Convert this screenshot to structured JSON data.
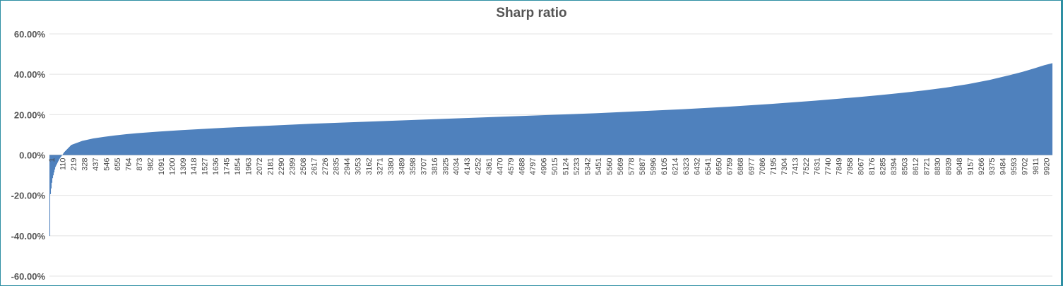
{
  "chart_data": {
    "type": "bar",
    "title": "Sharp ratio",
    "xlabel": "",
    "ylabel": "",
    "ylim": [
      -60,
      60
    ],
    "y_unit": "%",
    "y_ticks": [
      "60.00%",
      "40.00%",
      "20.00%",
      "0.00%",
      "-20.00%",
      "-40.00%",
      "-60.00%"
    ],
    "y_tick_values": [
      60,
      40,
      20,
      0,
      -20,
      -40,
      -60
    ],
    "x_tick_labels": [
      "1",
      "110",
      "219",
      "328",
      "437",
      "546",
      "655",
      "764",
      "873",
      "982",
      "1091",
      "1200",
      "1309",
      "1418",
      "1527",
      "1636",
      "1745",
      "1854",
      "1963",
      "2072",
      "2181",
      "2290",
      "2399",
      "2508",
      "2617",
      "2726",
      "2835",
      "2944",
      "3053",
      "3162",
      "3271",
      "3380",
      "3489",
      "3598",
      "3707",
      "3816",
      "3925",
      "4034",
      "4143",
      "4252",
      "4361",
      "4470",
      "4579",
      "4688",
      "4797",
      "4906",
      "5015",
      "5124",
      "5233",
      "5342",
      "5451",
      "5560",
      "5669",
      "5778",
      "5887",
      "5996",
      "6105",
      "6214",
      "6323",
      "6432",
      "6541",
      "6650",
      "6759",
      "6868",
      "6977",
      "7086",
      "7195",
      "7304",
      "7413",
      "7522",
      "7631",
      "7740",
      "7849",
      "7958",
      "8067",
      "8176",
      "8285",
      "8394",
      "8503",
      "8612",
      "8721",
      "8830",
      "8939",
      "9048",
      "9157",
      "9266",
      "9375",
      "9484",
      "9593",
      "9702",
      "9811",
      "9920"
    ],
    "x_range": [
      1,
      10000
    ],
    "bar_color": "#4f81bd",
    "grid": true,
    "legend": "none",
    "series": [
      {
        "x": [
          1,
          10,
          30,
          60,
          100,
          150,
          219,
          328,
          437,
          546,
          655,
          764,
          873,
          982,
          1091,
          1309,
          1527,
          1745,
          1963,
          2181,
          2399,
          2617,
          2835,
          3053,
          3271,
          3489,
          3707,
          3925,
          4143,
          4361,
          4579,
          4797,
          5015,
          5233,
          5451,
          5669,
          5887,
          6105,
          6323,
          6541,
          6759,
          6977,
          7195,
          7413,
          7631,
          7849,
          8067,
          8285,
          8503,
          8721,
          8939,
          9157,
          9375,
          9593,
          9702,
          9811,
          9920,
          10000
        ],
        "y": [
          -53,
          -20,
          -12,
          -6,
          -2,
          1.5,
          5,
          7,
          8.2,
          9,
          9.7,
          10.3,
          10.8,
          11.2,
          11.6,
          12.3,
          12.9,
          13.5,
          14,
          14.5,
          15,
          15.5,
          15.9,
          16.3,
          16.7,
          17.1,
          17.5,
          17.9,
          18.3,
          18.7,
          19.1,
          19.5,
          19.9,
          20.3,
          20.7,
          21.2,
          21.7,
          22.2,
          22.7,
          23.3,
          23.9,
          24.6,
          25.3,
          26.1,
          26.9,
          27.8,
          28.7,
          29.7,
          30.8,
          32,
          33.4,
          35.1,
          37.2,
          39.8,
          41.2,
          42.8,
          44.5,
          45.5
        ]
      }
    ]
  }
}
